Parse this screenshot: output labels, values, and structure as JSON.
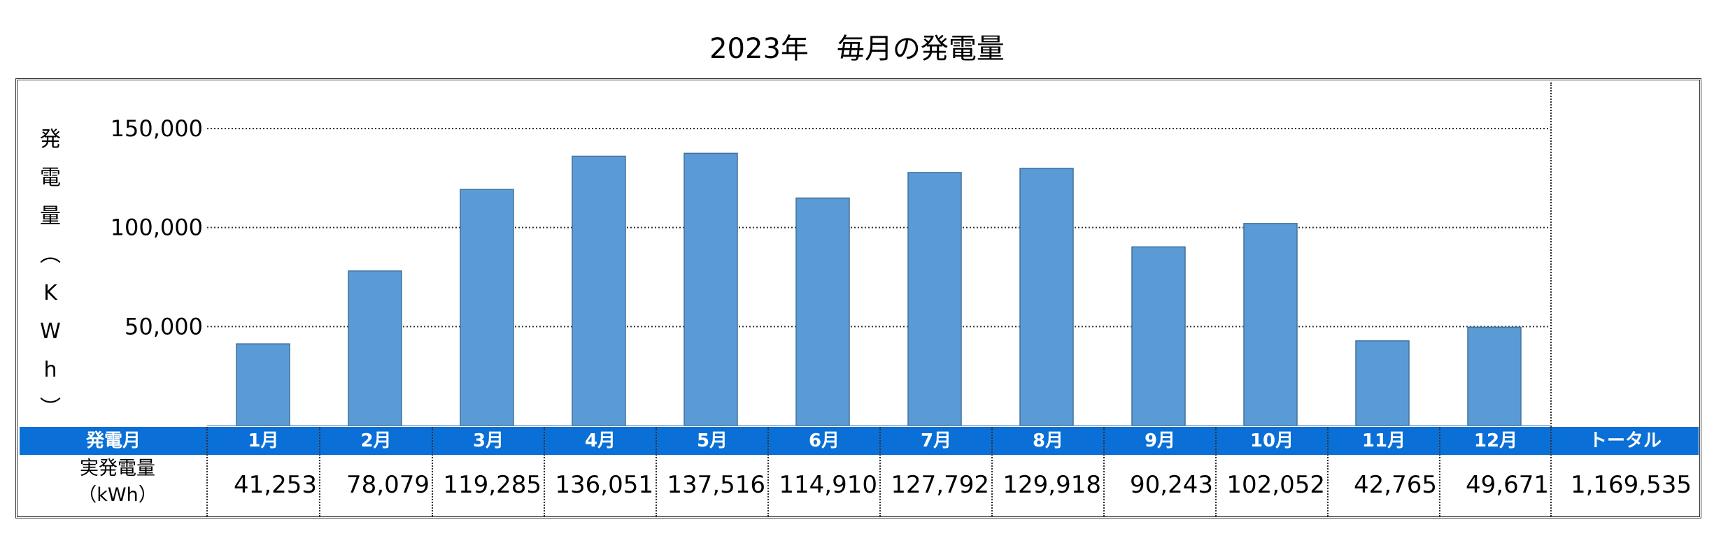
{
  "title": "2023年　毎月の発電量",
  "y_axis_label_chars": [
    "発",
    "電",
    "量",
    "︵",
    "K",
    "W",
    "h",
    "︶"
  ],
  "table": {
    "header_label": "発電月",
    "row_label_line1": "実発電量",
    "row_label_line2": "（kWh）",
    "months": [
      "1月",
      "2月",
      "3月",
      "4月",
      "5月",
      "6月",
      "7月",
      "8月",
      "9月",
      "10月",
      "11月",
      "12月"
    ],
    "values": [
      "41,253",
      "78,079",
      "119,285",
      "136,051",
      "137,516",
      "114,910",
      "127,792",
      "129,918",
      "90,243",
      "102,052",
      "42,765",
      "49,671"
    ],
    "total_label": "トータル",
    "total_value": "1,169,535"
  },
  "colors": {
    "bar": "#5b9bd5",
    "bar_border": "#41719c",
    "header_band": "#0a6fd6"
  },
  "chart_data": {
    "type": "bar",
    "categories": [
      "1月",
      "2月",
      "3月",
      "4月",
      "5月",
      "6月",
      "7月",
      "8月",
      "9月",
      "10月",
      "11月",
      "12月"
    ],
    "values": [
      41253,
      78079,
      119285,
      136051,
      137516,
      114910,
      127792,
      129918,
      90243,
      102052,
      42765,
      49671
    ],
    "title": "2023年　毎月の発電量",
    "ylabel": "発電量（KWh）",
    "xlabel": "",
    "ylim": [
      0,
      150000
    ],
    "yticks": [
      50000,
      100000,
      150000
    ],
    "ytick_labels": [
      "50,000",
      "100,000",
      "150,000"
    ],
    "grid": "horizontal dotted"
  }
}
